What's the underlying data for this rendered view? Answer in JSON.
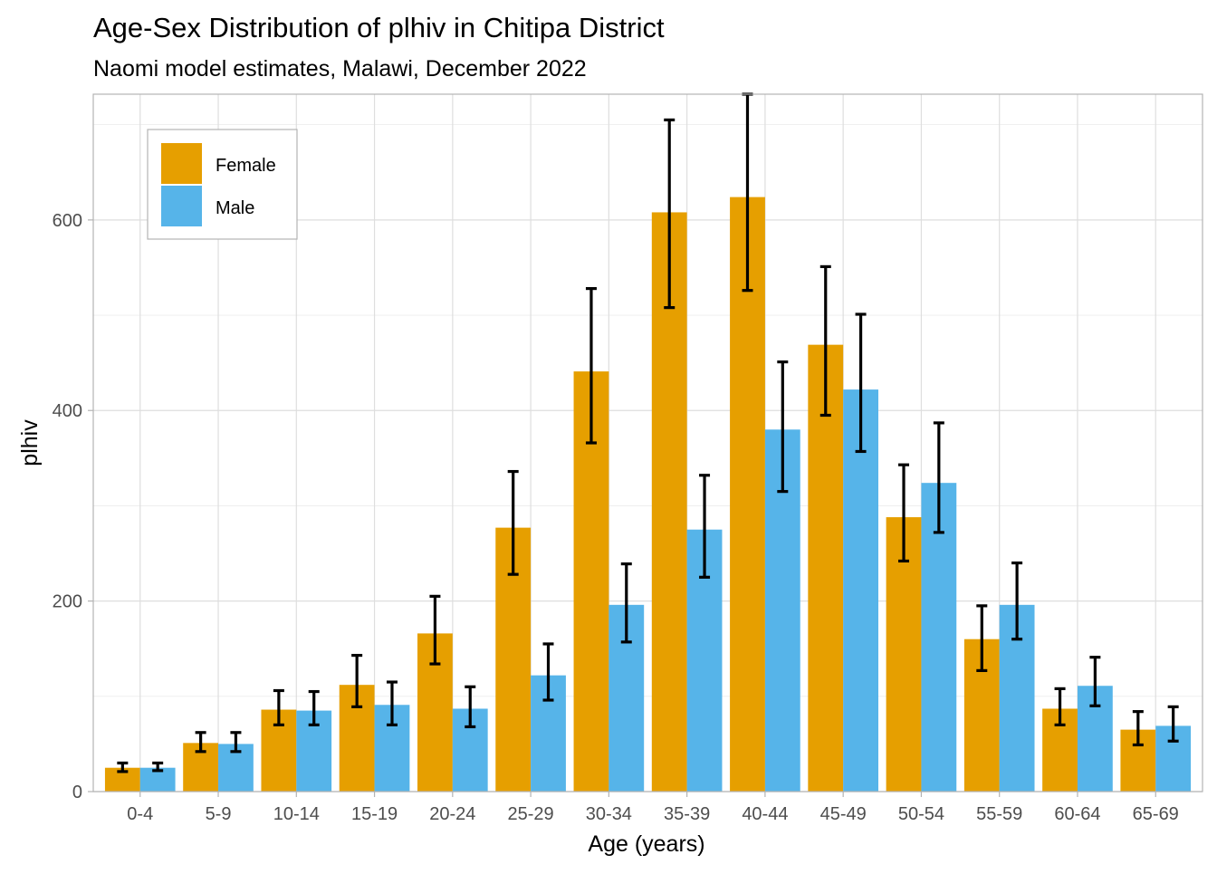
{
  "chart_data": {
    "type": "bar",
    "title": "Age-Sex Distribution of plhiv in Chitipa District",
    "subtitle": "Naomi model estimates, Malawi, December 2022",
    "xlabel": "Age (years)",
    "ylabel": "plhiv",
    "ylim": [
      0,
      732
    ],
    "yticks": [
      0,
      200,
      400,
      600
    ],
    "ytick_labels": [
      "0",
      "200",
      "400",
      "600"
    ],
    "categories": [
      "0-4",
      "5-9",
      "10-14",
      "15-19",
      "20-24",
      "25-29",
      "30-34",
      "35-39",
      "40-44",
      "45-49",
      "50-54",
      "55-59",
      "60-64",
      "65-69"
    ],
    "grid": true,
    "legend_position": "top-left",
    "series": [
      {
        "name": "Female",
        "color": "#E69F00",
        "values": [
          25,
          51,
          86,
          112,
          166,
          277,
          441,
          608,
          624,
          469,
          288,
          160,
          87,
          65
        ],
        "lower": [
          21,
          42,
          70,
          89,
          134,
          228,
          366,
          508,
          526,
          395,
          242,
          127,
          70,
          49
        ],
        "upper": [
          30,
          62,
          106,
          143,
          205,
          336,
          528,
          705,
          732,
          551,
          343,
          195,
          108,
          84
        ]
      },
      {
        "name": "Male",
        "color": "#56B4E9",
        "values": [
          25,
          50,
          85,
          91,
          87,
          122,
          196,
          275,
          380,
          422,
          324,
          196,
          111,
          69
        ],
        "lower": [
          22,
          42,
          70,
          70,
          68,
          96,
          157,
          225,
          315,
          357,
          272,
          160,
          90,
          53
        ],
        "upper": [
          30,
          62,
          105,
          115,
          110,
          155,
          239,
          332,
          451,
          501,
          387,
          240,
          141,
          89
        ]
      }
    ]
  }
}
